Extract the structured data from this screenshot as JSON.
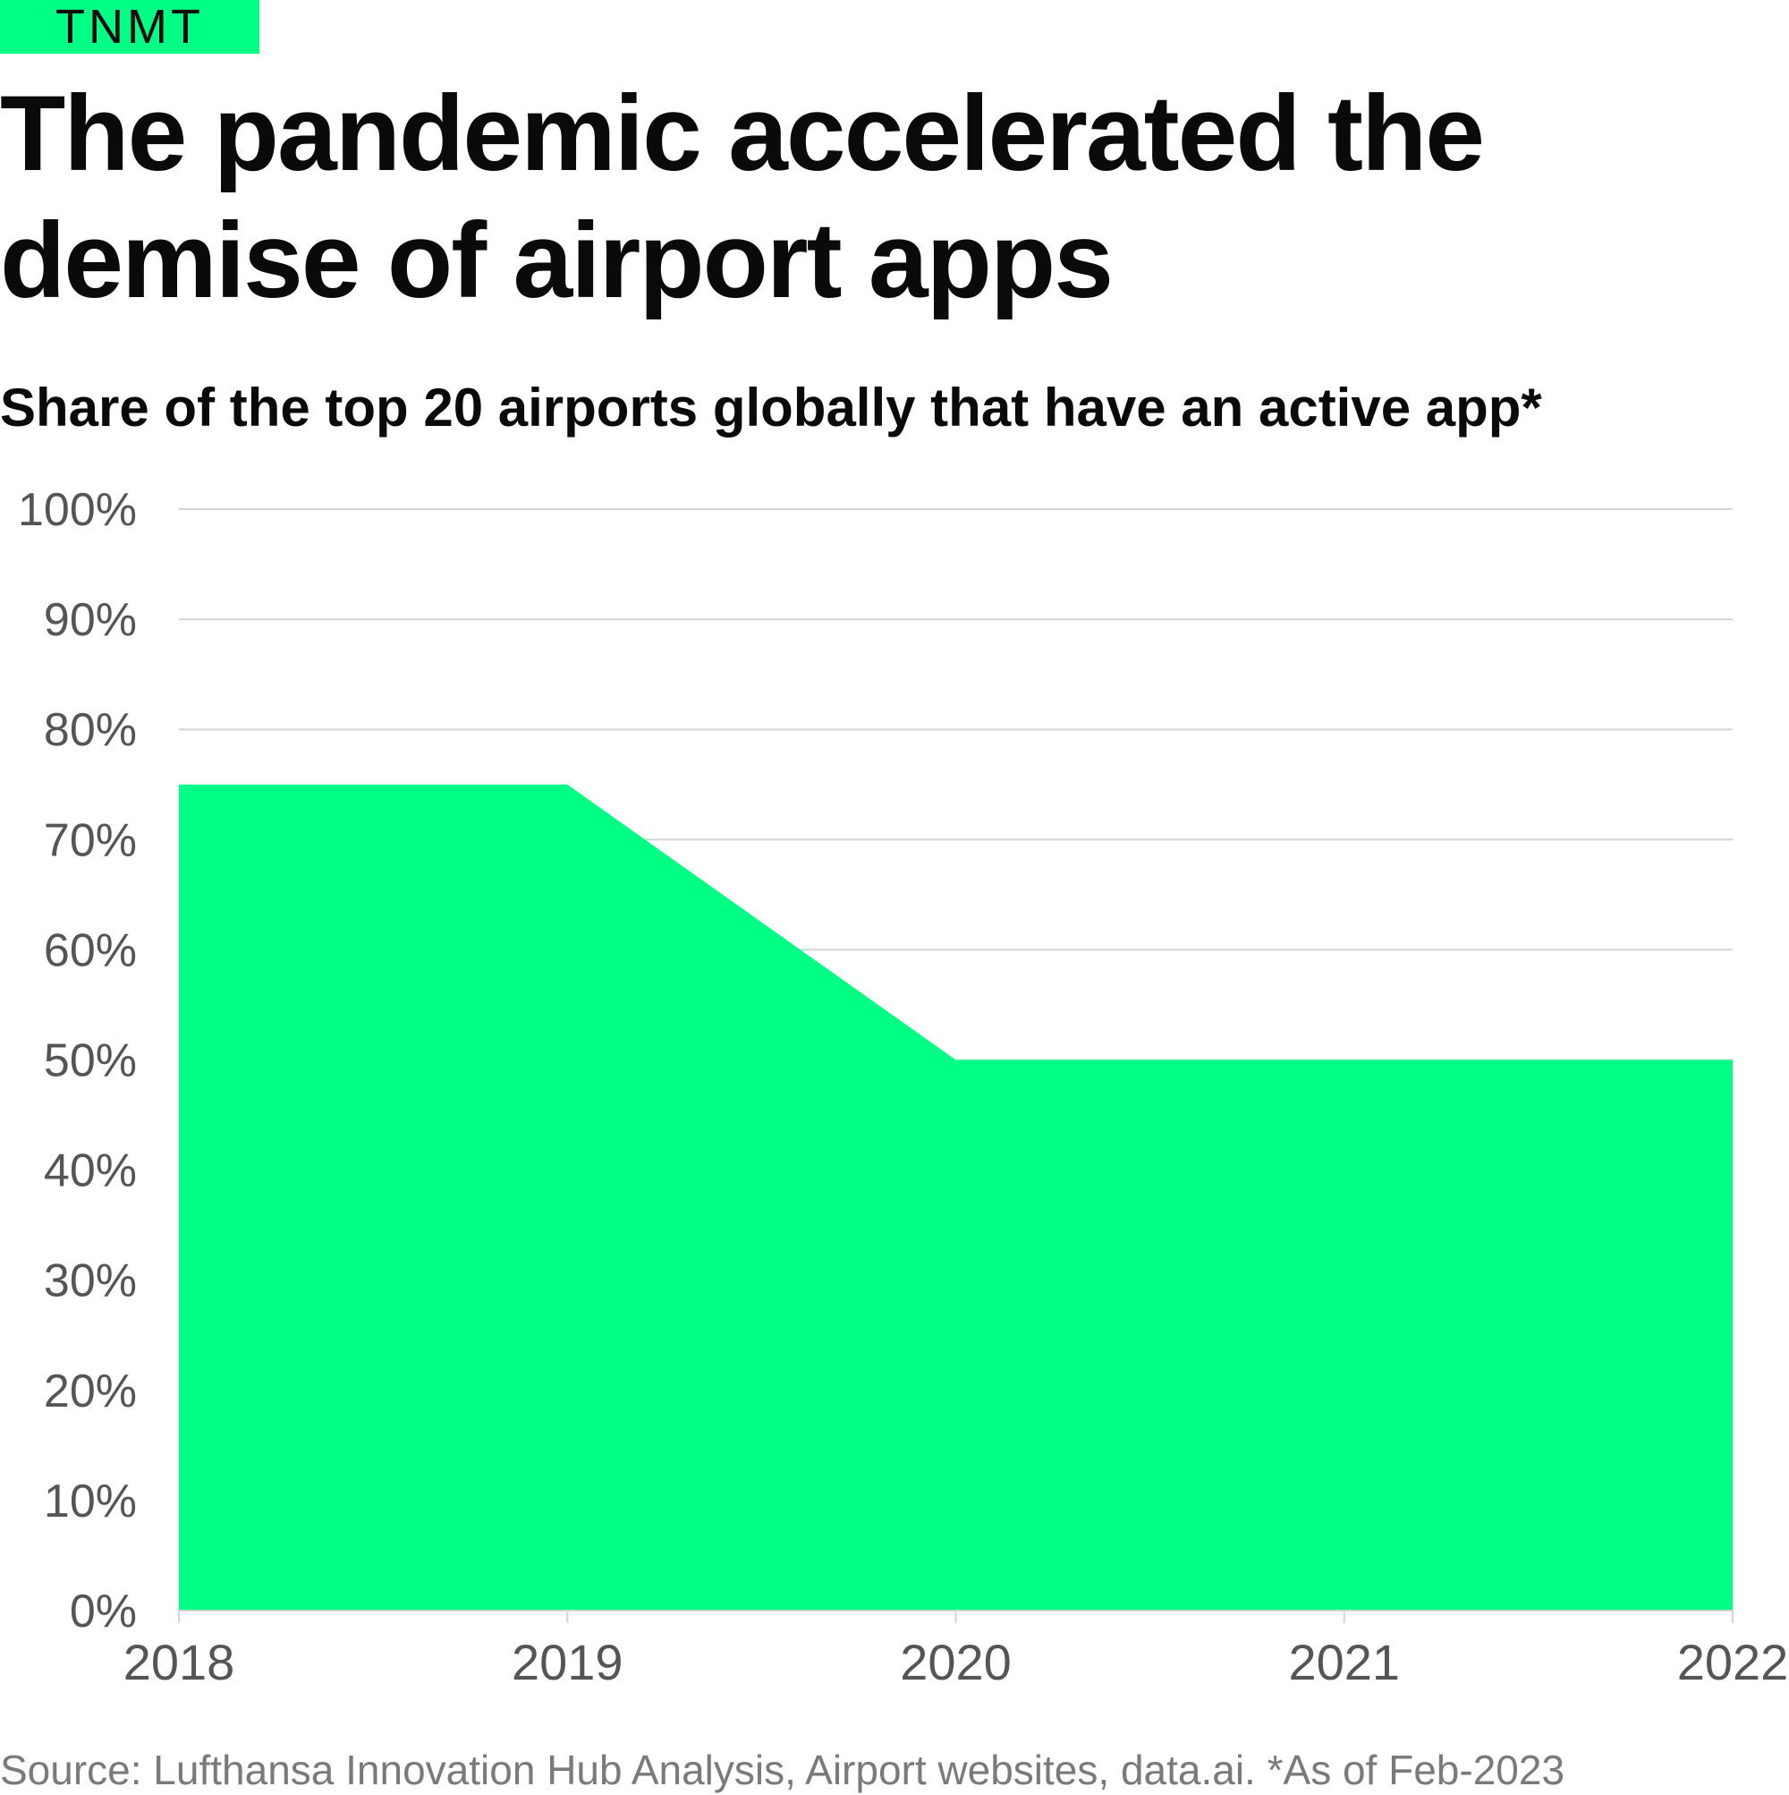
{
  "brand": {
    "logo_text": "TNMT"
  },
  "header": {
    "title": "The pandemic accelerated the demise of airport apps",
    "subtitle": "Share of the top 20 airports globally that have an active app*"
  },
  "footer": {
    "source": "Source: Lufthansa Innovation Hub Analysis, Airport websites, data.ai. *As of Feb-2023"
  },
  "colors": {
    "accent": "#00ff85",
    "text": "#0a0a0a",
    "axis_text": "#555555",
    "grid": "#d4d4d4",
    "source_text": "#7a7a7a"
  },
  "chart_data": {
    "type": "area",
    "x": [
      "2018",
      "2019",
      "2020",
      "2021",
      "2022"
    ],
    "values": [
      75,
      75,
      50,
      50,
      50
    ],
    "title": "Share of the top 20 airports globally that have an active app*",
    "xlabel": "",
    "ylabel": "",
    "ylim": [
      0,
      100
    ],
    "y_ticks": [
      "0%",
      "10%",
      "20%",
      "30%",
      "40%",
      "50%",
      "60%",
      "70%",
      "80%",
      "90%",
      "100%"
    ],
    "grid": true,
    "legend": "none"
  }
}
